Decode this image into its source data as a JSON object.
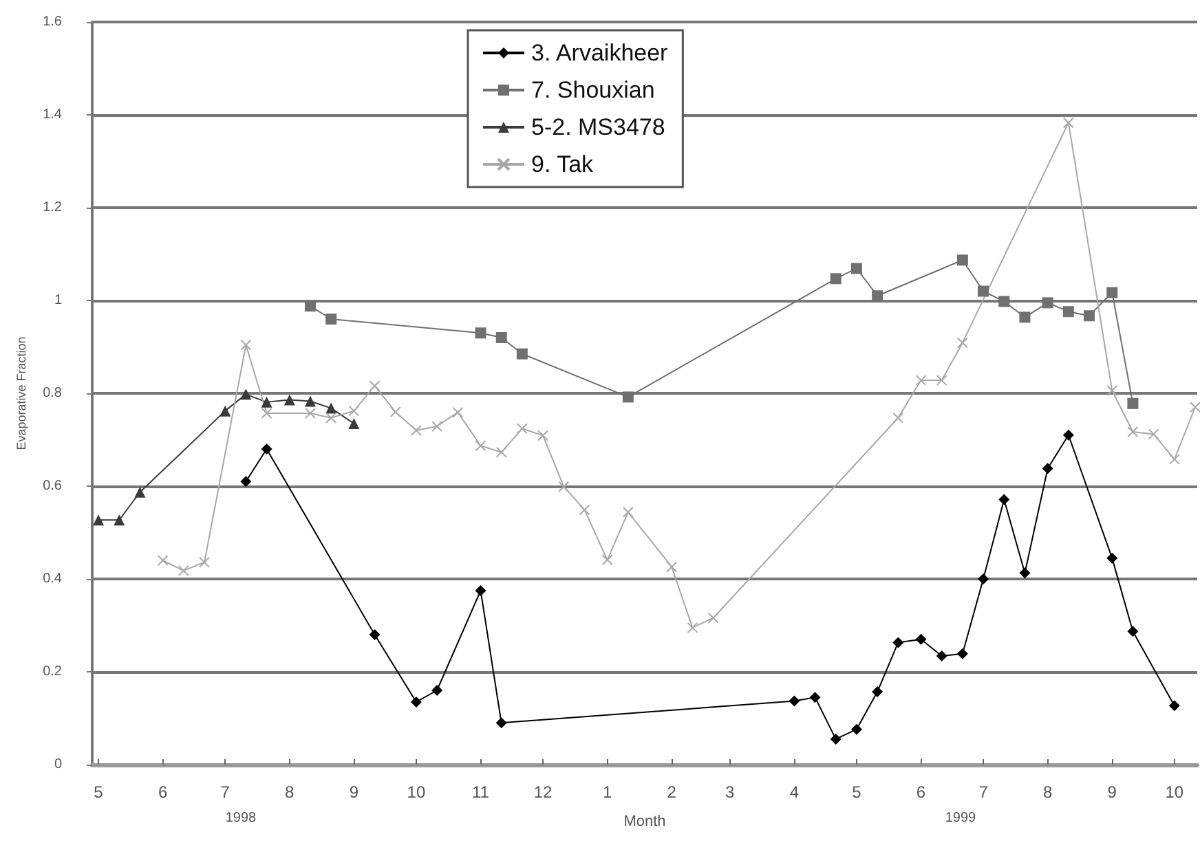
{
  "chart_data": {
    "type": "line",
    "xlabel": "Month",
    "ylabel": "Evaporative Fraction",
    "xlim": [
      "1998-04-28",
      "1999-10-12"
    ],
    "ylim": [
      0,
      1.6
    ],
    "yticks": [
      0,
      0.2,
      0.4,
      0.6,
      0.8,
      1,
      1.2,
      1.4,
      1.6
    ],
    "xticks": [
      {
        "value": "1998-05",
        "label": "5"
      },
      {
        "value": "1998-06",
        "label": "6"
      },
      {
        "value": "1998-07",
        "label": "7"
      },
      {
        "value": "1998-08",
        "label": "8"
      },
      {
        "value": "1998-09",
        "label": "9"
      },
      {
        "value": "1998-10",
        "label": "10"
      },
      {
        "value": "1998-11",
        "label": "11"
      },
      {
        "value": "1998-12",
        "label": "12"
      },
      {
        "value": "1999-01",
        "label": "1"
      },
      {
        "value": "1999-02",
        "label": "2"
      },
      {
        "value": "1999-03",
        "label": "3"
      },
      {
        "value": "1999-04",
        "label": "4"
      },
      {
        "value": "1999-05",
        "label": "5"
      },
      {
        "value": "1999-06",
        "label": "6"
      },
      {
        "value": "1999-07",
        "label": "7"
      },
      {
        "value": "1999-08",
        "label": "8"
      },
      {
        "value": "1999-09",
        "label": "9"
      },
      {
        "value": "1999-10",
        "label": "10"
      }
    ],
    "grid": "y",
    "legend": "top",
    "line_style": "solid",
    "annotations": [
      "1998",
      "1999"
    ],
    "series": [
      {
        "name": "3. Arvaikheer",
        "color": "#000000",
        "marker": "diamond",
        "x": [
          "1998-07-11",
          "1998-07-21",
          "1998-09-11",
          "1998-10-01",
          "1998-10-11",
          "1998-11-01",
          "1998-11-11",
          "1999-04-01",
          "1999-04-11",
          "1999-04-21",
          "1999-05-01",
          "1999-05-11",
          "1999-05-21",
          "1999-06-01",
          "1999-06-11",
          "1999-06-21",
          "1999-07-01",
          "1999-07-11",
          "1999-07-21",
          "1999-08-01",
          "1999-08-11",
          "1999-09-01",
          "1999-09-11",
          "1999-10-01"
        ],
        "values": [
          0.61,
          0.68,
          0.28,
          0.135,
          0.16,
          0.375,
          0.09,
          0.137,
          0.145,
          0.055,
          0.076,
          0.157,
          0.263,
          0.27,
          0.234,
          0.239,
          0.4,
          0.571,
          0.413,
          0.638,
          0.71,
          0.445,
          0.287,
          0.127
        ]
      },
      {
        "name": "7. Shouxian",
        "color": "#707070",
        "marker": "square",
        "x": [
          "1998-08-11",
          "1998-08-21",
          "1998-11-01",
          "1998-11-11",
          "1998-11-21",
          "1999-01-11",
          "1999-04-21",
          "1999-05-01",
          "1999-05-11",
          "1999-06-21",
          "1999-07-01",
          "1999-07-11",
          "1999-07-21",
          "1999-08-01",
          "1999-08-11",
          "1999-08-21",
          "1999-09-01",
          "1999-09-11"
        ],
        "values": [
          0.988,
          0.96,
          0.93,
          0.92,
          0.885,
          0.792,
          1.047,
          1.069,
          1.01,
          1.087,
          1.02,
          0.998,
          0.964,
          0.995,
          0.976,
          0.967,
          1.017,
          0.778
        ]
      },
      {
        "name": "5-2. MS3478",
        "color": "#3a3a3a",
        "marker": "triangle",
        "x": [
          "1998-05-01",
          "1998-05-11",
          "1998-05-21",
          "1998-07-01",
          "1998-07-11",
          "1998-07-21",
          "1998-08-01",
          "1998-08-11",
          "1998-08-21",
          "1998-09-01"
        ],
        "values": [
          0.527,
          0.527,
          0.587,
          0.762,
          0.798,
          0.781,
          0.786,
          0.783,
          0.768,
          0.735
        ]
      },
      {
        "name": "9. Tak",
        "color": "#a8a8a8",
        "marker": "cross",
        "x": [
          "1998-06-01",
          "1998-06-11",
          "1998-06-21",
          "1998-07-11",
          "1998-07-21",
          "1998-08-11",
          "1998-08-21",
          "1998-09-01",
          "1998-09-11",
          "1998-09-21",
          "1998-10-01",
          "1998-10-11",
          "1998-10-21",
          "1998-11-01",
          "1998-11-11",
          "1998-11-21",
          "1998-12-01",
          "1998-12-11",
          "1998-12-21",
          "1999-01-01",
          "1999-01-11",
          "1999-02-01",
          "1999-02-11",
          "1999-02-21",
          "1999-05-21",
          "1999-06-01",
          "1999-06-11",
          "1999-06-21",
          "1999-08-11",
          "1999-09-01",
          "1999-09-11",
          "1999-09-21",
          "1999-10-01",
          "1999-10-11"
        ],
        "values": [
          0.44,
          0.418,
          0.436,
          0.904,
          0.757,
          0.757,
          0.747,
          0.762,
          0.816,
          0.76,
          0.72,
          0.729,
          0.759,
          0.687,
          0.673,
          0.724,
          0.709,
          0.599,
          0.549,
          0.441,
          0.544,
          0.426,
          0.295,
          0.316,
          0.747,
          0.828,
          0.828,
          0.909,
          1.383,
          0.806,
          0.717,
          0.712,
          0.658,
          0.77
        ]
      }
    ]
  }
}
